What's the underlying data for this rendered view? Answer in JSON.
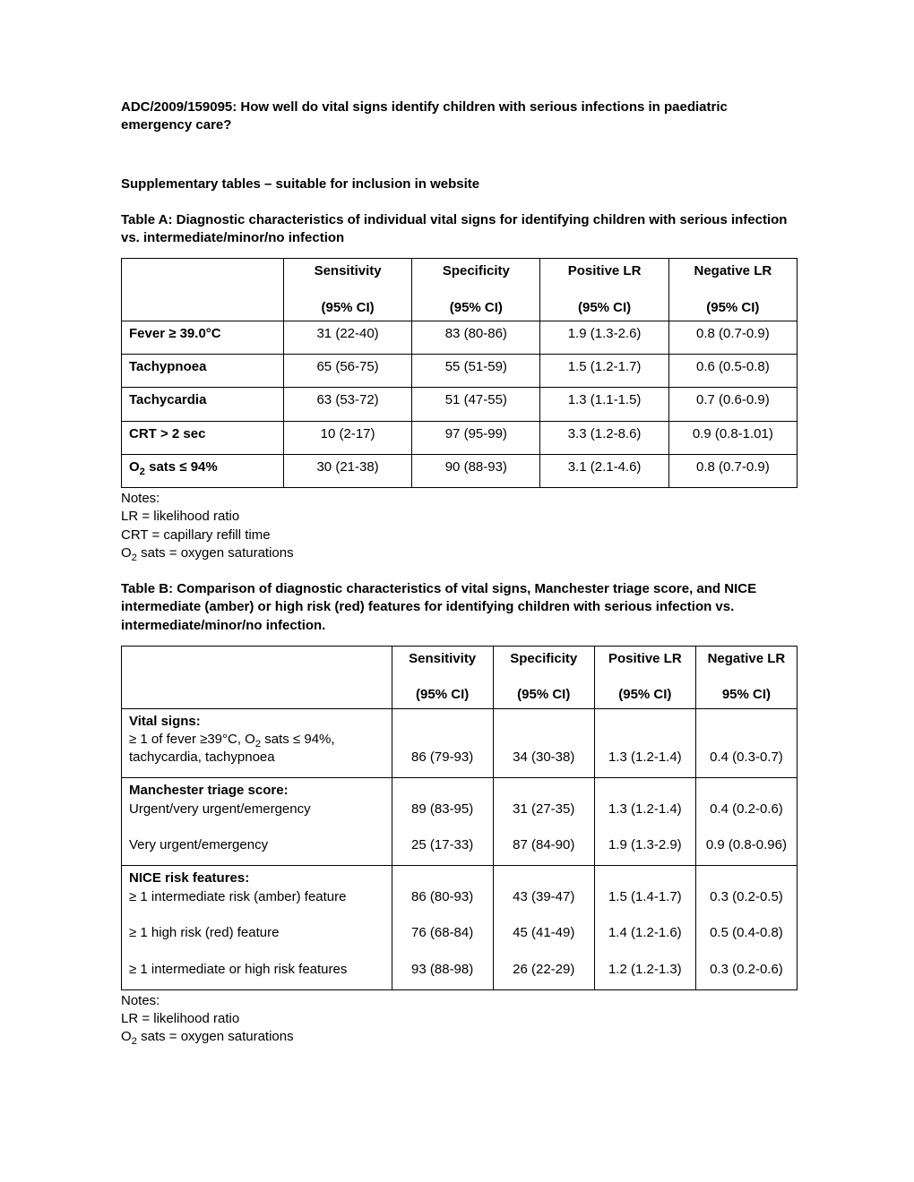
{
  "doc": {
    "title": "ADC/2009/159095: How well do vital signs identify children with serious infections in paediatric emergency care?",
    "subtitle": "Supplementary tables – suitable for inclusion in website"
  },
  "tableA": {
    "caption": "Table A: Diagnostic characteristics of individual vital signs for identifying children with serious infection vs. intermediate/minor/no infection",
    "col_widths": [
      "24%",
      "19%",
      "19%",
      "19%",
      "19%"
    ],
    "head": {
      "blank": "",
      "c1a": "Sensitivity",
      "c1b": "(95% CI)",
      "c2a": "Specificity",
      "c2b": "(95% CI)",
      "c3a": "Positive LR",
      "c3b": "(95% CI)",
      "c4a": "Negative LR",
      "c4b": "(95% CI)"
    },
    "rows": [
      {
        "label_html": "Fever ≥ 39.0°C",
        "sens": "31 (22-40)",
        "spec": "83 (80-86)",
        "plr": "1.9 (1.3-2.6)",
        "nlr": "0.8 (0.7-0.9)"
      },
      {
        "label_html": "Tachypnoea",
        "sens": "65 (56-75)",
        "spec": "55 (51-59)",
        "plr": "1.5 (1.2-1.7)",
        "nlr": "0.6 (0.5-0.8)"
      },
      {
        "label_html": "Tachycardia",
        "sens": "63 (53-72)",
        "spec": "51 (47-55)",
        "plr": "1.3 (1.1-1.5)",
        "nlr": "0.7 (0.6-0.9)"
      },
      {
        "label_html": "CRT > 2 sec",
        "sens": "10 (2-17)",
        "spec": "97 (95-99)",
        "plr": "3.3 (1.2-8.6)",
        "nlr": "0.9 (0.8-1.01)"
      },
      {
        "label_html": "O<sub>2</sub> sats ≤ 94%",
        "sens": "30 (21-38)",
        "spec": "90 (88-93)",
        "plr": "3.1 (2.1-4.6)",
        "nlr": "0.8 (0.7-0.9)"
      }
    ],
    "notes": [
      "Notes:",
      "LR = likelihood ratio",
      "CRT = capillary refill time",
      "O<sub>2</sub> sats = oxygen saturations"
    ]
  },
  "tableB": {
    "caption": "Table B: Comparison of diagnostic characteristics of vital signs, Manchester triage score, and NICE intermediate (amber) or high risk (red) features for identifying children with serious infection vs. intermediate/minor/no infection.",
    "col_widths": [
      "40%",
      "15%",
      "15%",
      "15%",
      "15%"
    ],
    "head": {
      "blank": "",
      "c1a": "Sensitivity",
      "c1b": "(95% CI)",
      "c2a": "Specificity",
      "c2b": "(95% CI)",
      "c3a": "Positive LR",
      "c3b": "(95% CI)",
      "c4a": "Negative LR",
      "c4b": "95% CI)"
    },
    "groups": [
      {
        "title": "Vital signs:",
        "lines": [
          {
            "label_html": "≥ 1 of fever ≥39°C, O<sub>2</sub> sats ≤ 94%, tachycardia, tachypnoea",
            "sens": "86 (79-93)",
            "spec": "34 (30-38)",
            "plr": "1.3 (1.2-1.4)",
            "nlr": "0.4 (0.3-0.7)"
          }
        ]
      },
      {
        "title": "Manchester triage score:",
        "lines": [
          {
            "label_html": "Urgent/very urgent/emergency",
            "sens": "89 (83-95)",
            "spec": "31 (27-35)",
            "plr": "1.3 (1.2-1.4)",
            "nlr": "0.4 (0.2-0.6)"
          },
          {
            "label_html": "Very urgent/emergency",
            "sens": "25 (17-33)",
            "spec": "87 (84-90)",
            "plr": "1.9 (1.3-2.9)",
            "nlr": "0.9 (0.8-0.96)"
          }
        ]
      },
      {
        "title": "NICE risk features:",
        "lines": [
          {
            "label_html": "≥ 1 intermediate risk (amber) feature",
            "sens": "86 (80-93)",
            "spec": "43 (39-47)",
            "plr": "1.5 (1.4-1.7)",
            "nlr": "0.3 (0.2-0.5)"
          },
          {
            "label_html": "≥ 1 high risk (red) feature",
            "sens": "76 (68-84)",
            "spec": "45 (41-49)",
            "plr": "1.4 (1.2-1.6)",
            "nlr": "0.5 (0.4-0.8)"
          },
          {
            "label_html": "≥ 1 intermediate or high risk features",
            "sens": "93 (88-98)",
            "spec": "26 (22-29)",
            "plr": "1.2 (1.2-1.3)",
            "nlr": "0.3 (0.2-0.6)"
          }
        ]
      }
    ],
    "notes": [
      "Notes:",
      "LR = likelihood ratio",
      "O<sub>2</sub> sats = oxygen saturations"
    ]
  }
}
